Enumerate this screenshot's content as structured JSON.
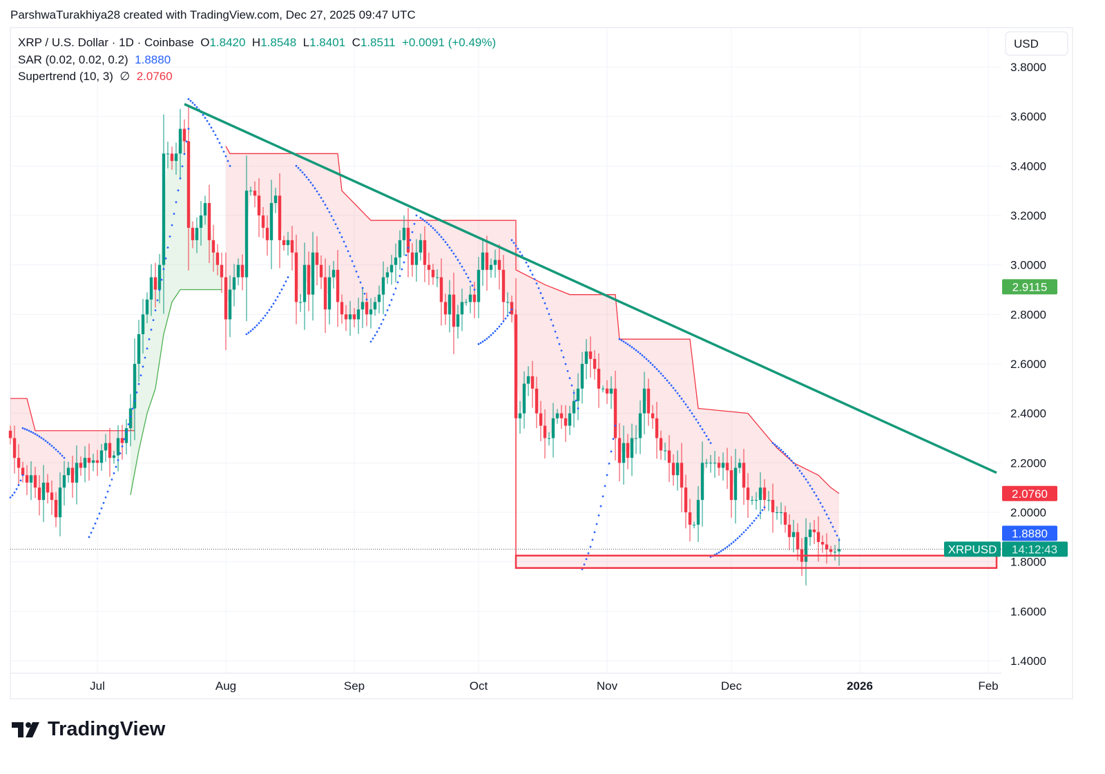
{
  "credit": "ParshwaTurakhiya28 created with TradingView.com, Dec 27, 2025 09:47 UTC",
  "legend": {
    "symbol": "XRP / U.S. Dollar · 1D · Coinbase",
    "o_label": "O",
    "o": "1.8420",
    "h_label": "H",
    "h": "1.8548",
    "l_label": "L",
    "l": "1.8401",
    "c_label": "C",
    "c": "1.8511",
    "change": "+0.0091 (+0.49%)",
    "sar_label": "SAR (0.02, 0.02, 0.2)",
    "sar_value": "1.8880",
    "st_label": "Supertrend (10, 3)",
    "st_icon": "∅",
    "st_value": "2.0760"
  },
  "currency": "USD",
  "logo_text": "TradingView",
  "colors": {
    "up": "#089981",
    "down": "#f23645",
    "sar": "#2962ff",
    "trendline": "#14997a",
    "st_up": "#4caf50"
  },
  "chart_data": {
    "type": "candlestick",
    "symbol": "XRPUSD",
    "start_date": "2025-06-10",
    "ylim": [
      1.3,
      3.9
    ],
    "yticks": [
      "1.4000",
      "1.6000",
      "1.8000",
      "2.0000",
      "2.2000",
      "2.4000",
      "2.6000",
      "2.8000",
      "3.0000",
      "3.2000",
      "3.4000",
      "3.6000",
      "3.8000"
    ],
    "xticks": [
      {
        "label": "Jul",
        "day": 21
      },
      {
        "label": "Aug",
        "day": 52
      },
      {
        "label": "Sep",
        "day": 83
      },
      {
        "label": "Oct",
        "day": 113
      },
      {
        "label": "Nov",
        "day": 144
      },
      {
        "label": "Dec",
        "day": 174
      },
      {
        "label": "2026",
        "day": 205,
        "bold": true
      },
      {
        "label": "Feb",
        "day": 236
      }
    ],
    "closes": [
      2.3,
      2.22,
      2.18,
      2.15,
      2.12,
      2.15,
      2.1,
      2.05,
      2.12,
      2.08,
      2.05,
      1.98,
      2.1,
      2.15,
      2.18,
      2.12,
      2.2,
      2.18,
      2.22,
      2.2,
      2.21,
      2.2,
      2.25,
      2.28,
      2.22,
      2.23,
      2.3,
      2.28,
      2.34,
      2.42,
      2.6,
      2.72,
      2.8,
      2.86,
      2.95,
      2.9,
      3.0,
      3.45,
      3.45,
      3.42,
      3.45,
      3.55,
      3.5,
      3.15,
      3.1,
      3.15,
      3.2,
      3.25,
      3.1,
      3.05,
      3.0,
      2.95,
      2.78,
      2.9,
      2.95,
      3.0,
      2.95,
      3.3,
      3.3,
      3.28,
      3.2,
      3.15,
      3.1,
      3.25,
      3.28,
      3.1,
      3.08,
      3.1,
      3.05,
      2.85,
      2.85,
      3.0,
      2.88,
      3.05,
      3.0,
      2.95,
      2.82,
      2.95,
      2.98,
      2.85,
      2.8,
      2.78,
      2.8,
      2.78,
      2.82,
      2.85,
      2.8,
      2.82,
      2.85,
      2.88,
      2.95,
      2.97,
      3.0,
      3.03,
      3.1,
      3.15,
      3.05,
      3.0,
      3.05,
      3.1,
      3.0,
      2.98,
      2.95,
      2.95,
      2.85,
      2.8,
      2.88,
      2.75,
      2.8,
      2.85,
      2.85,
      2.88,
      2.85,
      2.98,
      3.05,
      2.98,
      3.0,
      3.02,
      2.98,
      2.85,
      2.85,
      2.8,
      2.38,
      2.4,
      2.52,
      2.55,
      2.5,
      2.4,
      2.35,
      2.3,
      2.3,
      2.38,
      2.4,
      2.38,
      2.35,
      2.4,
      2.45,
      2.5,
      2.6,
      2.65,
      2.62,
      2.58,
      2.5,
      2.5,
      2.48,
      2.5,
      2.3,
      2.2,
      2.28,
      2.22,
      2.3,
      2.3,
      2.4,
      2.5,
      2.4,
      2.38,
      2.3,
      2.25,
      2.25,
      2.2,
      2.15,
      2.2,
      2.1,
      2.0,
      1.95,
      1.95,
      2.05,
      2.2,
      2.2,
      2.2,
      2.2,
      2.18,
      2.2,
      2.17,
      2.05,
      2.18,
      2.2,
      2.1,
      2.05,
      2.05,
      2.05,
      2.1,
      2.05,
      2.05,
      2.0,
      2.0,
      2.0,
      1.95,
      1.9,
      1.92,
      1.85,
      1.8,
      1.9,
      1.93,
      1.92,
      1.88,
      1.87,
      1.85,
      1.84,
      1.84,
      1.8511
    ],
    "last_open": 1.842,
    "supertrend": [
      {
        "dir": "down",
        "points": [
          [
            0,
            2.46
          ],
          [
            4,
            2.46
          ],
          [
            6,
            2.33
          ],
          [
            29,
            2.33
          ],
          [
            30,
            2.33
          ]
        ]
      },
      {
        "dir": "up",
        "points": [
          [
            29,
            2.07
          ],
          [
            31,
            2.25
          ],
          [
            33,
            2.4
          ],
          [
            35,
            2.5
          ],
          [
            37,
            2.72
          ],
          [
            39,
            2.85
          ],
          [
            41,
            2.9
          ],
          [
            51,
            2.9
          ]
        ]
      },
      {
        "dir": "down",
        "points": [
          [
            52,
            3.48
          ],
          [
            53,
            3.45
          ],
          [
            79,
            3.45
          ],
          [
            80,
            3.3
          ],
          [
            87,
            3.18
          ],
          [
            122,
            3.18
          ],
          [
            122,
            2.98
          ],
          [
            129,
            2.92
          ],
          [
            135,
            2.88
          ],
          [
            146,
            2.88
          ],
          [
            147,
            2.7
          ],
          [
            164,
            2.7
          ],
          [
            166,
            2.42
          ],
          [
            178,
            2.4
          ],
          [
            179,
            2.38
          ],
          [
            185,
            2.26
          ],
          [
            189,
            2.2
          ],
          [
            195,
            2.15
          ],
          [
            198,
            2.1
          ],
          [
            200,
            2.076
          ]
        ]
      }
    ],
    "sar": [
      {
        "side": "below",
        "from": 0,
        "to": 3,
        "start": 2.06,
        "end": 2.15
      },
      {
        "side": "above",
        "from": 3,
        "to": 13,
        "start": 2.34,
        "end": 2.22
      },
      {
        "side": "below",
        "from": 19,
        "to": 43,
        "start": 1.9,
        "end": 3.55
      },
      {
        "side": "above",
        "from": 43,
        "to": 53,
        "start": 3.67,
        "end": 3.4
      },
      {
        "side": "below",
        "from": 57,
        "to": 67,
        "start": 2.72,
        "end": 2.95
      },
      {
        "side": "above",
        "from": 69,
        "to": 86,
        "start": 3.4,
        "end": 2.86
      },
      {
        "side": "below",
        "from": 87,
        "to": 98,
        "start": 2.69,
        "end": 3.2
      },
      {
        "side": "above",
        "from": 99,
        "to": 112,
        "start": 3.19,
        "end": 2.9
      },
      {
        "side": "below",
        "from": 113,
        "to": 121,
        "start": 2.68,
        "end": 2.82
      },
      {
        "side": "above",
        "from": 121,
        "to": 137,
        "start": 3.1,
        "end": 2.42
      },
      {
        "side": "below",
        "from": 138,
        "to": 146,
        "start": 1.77,
        "end": 2.35
      },
      {
        "side": "above",
        "from": 147,
        "to": 169,
        "start": 2.7,
        "end": 2.28
      },
      {
        "side": "below",
        "from": 169,
        "to": 182,
        "start": 1.82,
        "end": 2.02
      },
      {
        "side": "above",
        "from": 184,
        "to": 200,
        "start": 2.28,
        "end": 1.888
      }
    ],
    "trendline": {
      "from": [
        42,
        3.65
      ],
      "to": [
        238,
        2.16
      ]
    },
    "support_zone": {
      "from_day": 122,
      "to_day": 238,
      "top": 1.825,
      "bottom": 1.775,
      "top_of_left_edge": 2.82
    },
    "price_labels": [
      {
        "value": 2.9115,
        "text": "2.9115",
        "color": "#4caf50"
      },
      {
        "value": 2.076,
        "text": "2.0760",
        "color": "#f23645"
      },
      {
        "value": 1.888,
        "text": "1.8880",
        "color": "#2962ff"
      }
    ],
    "last_price": {
      "value": 1.8511,
      "symbol_tag": "XRPUSD",
      "countdown": "14:12:43",
      "color": "#089981"
    }
  }
}
